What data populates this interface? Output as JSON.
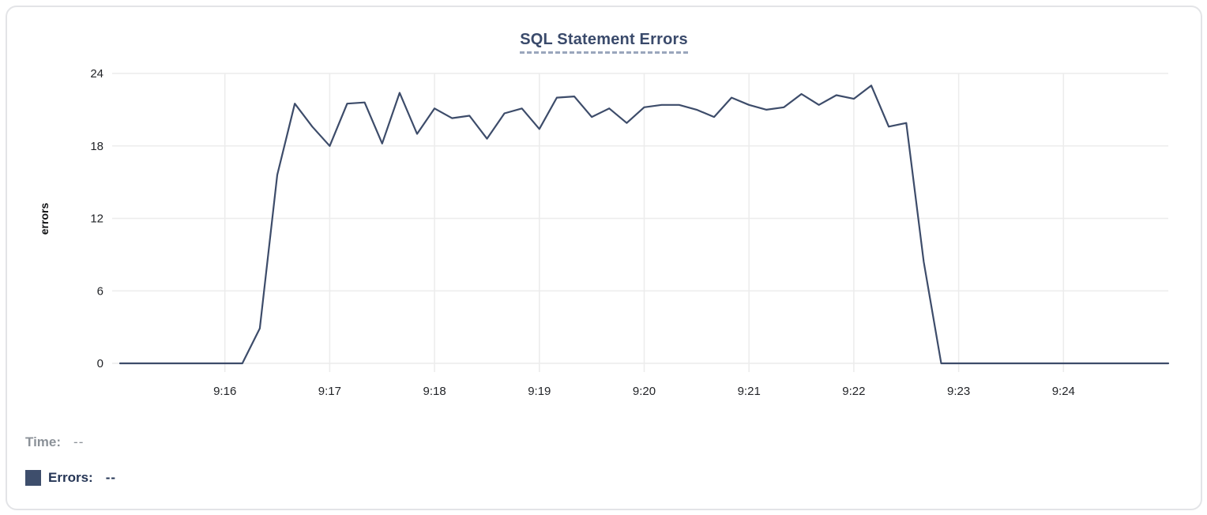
{
  "chart_data": {
    "type": "line",
    "title": "SQL Statement Errors",
    "ylabel": "errors",
    "y_ticks": [
      0,
      6,
      12,
      18,
      24
    ],
    "ylim": [
      0,
      24
    ],
    "x_ticks": [
      "9:16",
      "9:17",
      "9:18",
      "9:19",
      "9:20",
      "9:21",
      "9:22",
      "9:23",
      "9:24"
    ],
    "x_start": "9:15:00",
    "x_end": "9:25:00",
    "sample_interval_seconds": 10,
    "grid": true,
    "series": [
      {
        "name": "Errors",
        "color": "#3d4c6a",
        "values": [
          0,
          0,
          0,
          0,
          0,
          0,
          0,
          0,
          2.9,
          15.6,
          21.5,
          19.6,
          18,
          21.5,
          21.6,
          18.2,
          22.4,
          19,
          21.1,
          20.3,
          20.5,
          18.6,
          20.7,
          21.1,
          19.4,
          22,
          22.1,
          20.4,
          21.1,
          19.9,
          21.2,
          21.4,
          21.4,
          21,
          20.4,
          22,
          21.4,
          21,
          21.2,
          22.3,
          21.4,
          22.2,
          21.9,
          23,
          19.6,
          19.9,
          8.4,
          0,
          0,
          0,
          0,
          0,
          0,
          0,
          0,
          0,
          0,
          0,
          0,
          0,
          0
        ]
      }
    ]
  },
  "tooltip": {
    "time_label": "Time:",
    "time_value": "--",
    "errors_label": "Errors:",
    "errors_value": "--"
  },
  "colors": {
    "line": "#3d4c6a",
    "title": "#3a4a6b",
    "title_underline": "#9aa6bc",
    "grid": "#ececec",
    "tick_text": "#222428",
    "footer_time": "#8b9198",
    "footer_errors": "#253555",
    "swatch": "#3e4e6c",
    "panel_border": "#e3e4e7"
  }
}
